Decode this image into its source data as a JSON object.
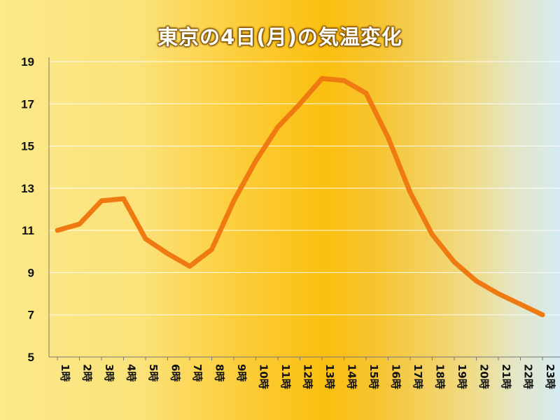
{
  "chart_data": {
    "type": "line",
    "title": "東京の4日(月)の気温変化",
    "categories": [
      "1時",
      "2時",
      "3時",
      "4時",
      "5時",
      "6時",
      "7時",
      "8時",
      "9時",
      "10時",
      "11時",
      "12時",
      "13時",
      "14時",
      "15時",
      "16時",
      "17時",
      "18時",
      "19時",
      "20時",
      "21時",
      "22時",
      "23時"
    ],
    "series": [
      {
        "values": [
          11.0,
          11.3,
          12.4,
          12.5,
          10.6,
          9.9,
          9.3,
          10.1,
          12.4,
          14.3,
          15.9,
          17.0,
          18.2,
          18.1,
          17.5,
          15.4,
          12.8,
          10.8,
          9.5,
          8.6,
          8.0,
          7.5,
          7.0
        ]
      }
    ],
    "yticks": [
      5,
      7,
      9,
      11,
      13,
      15,
      17,
      19
    ],
    "ylim": [
      5,
      19
    ],
    "grid": true,
    "colors": {
      "line": "#f07a12",
      "grid": "#ffffff"
    }
  }
}
